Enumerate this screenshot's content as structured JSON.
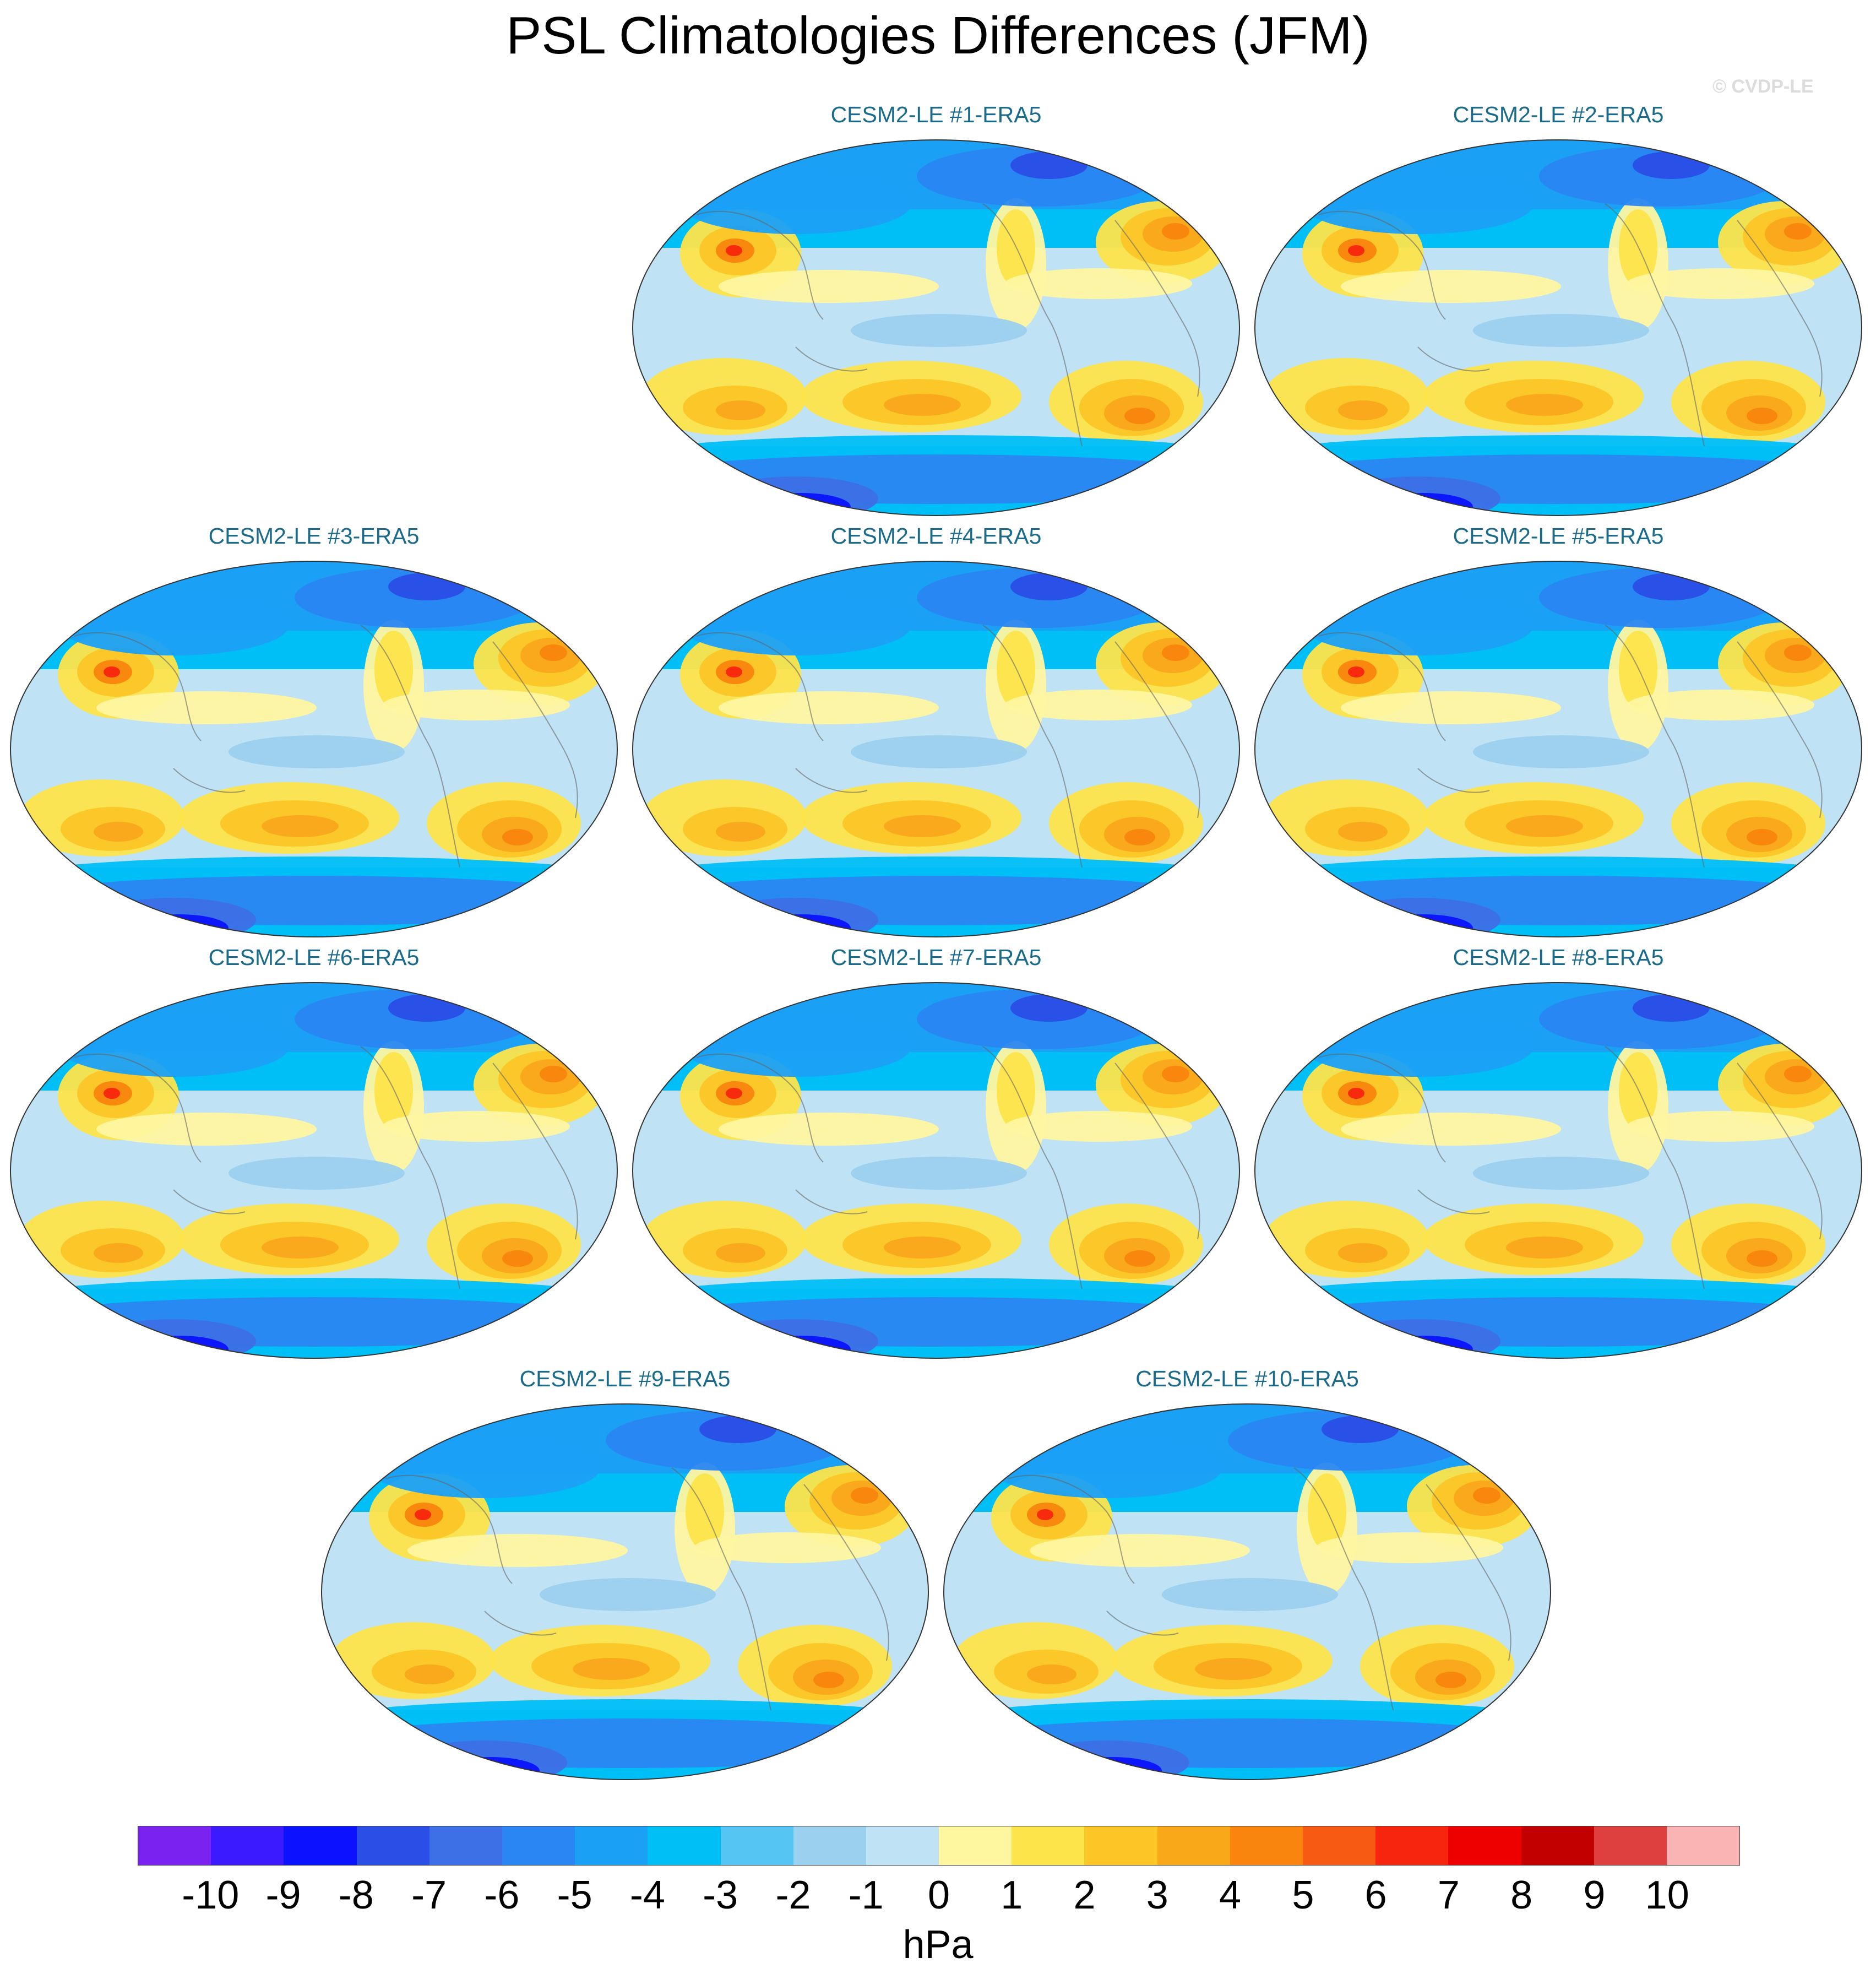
{
  "title": "PSL Climatologies Differences (JFM)",
  "watermark": "© CVDP-LE",
  "units": "hPa",
  "colorbar": {
    "colors": [
      "#7a22f0",
      "#3c1aff",
      "#0a12ff",
      "#2a4ee6",
      "#3d6fe6",
      "#2a86f2",
      "#1aa0f5",
      "#00bff7",
      "#55c6f3",
      "#9bd0ee",
      "#bfe3f5",
      "#fff6a0",
      "#fde44a",
      "#fcc627",
      "#f9a81a",
      "#f9850e",
      "#f75a12",
      "#f8250e",
      "#ee0000",
      "#c30000",
      "#de4040",
      "#fbb4b4"
    ],
    "labels": [
      "-10",
      "-9",
      "-8",
      "-7",
      "-6",
      "-5",
      "-4",
      "-3",
      "-2",
      "-1",
      "0",
      "1",
      "2",
      "3",
      "4",
      "5",
      "6",
      "7",
      "8",
      "9",
      "10"
    ]
  },
  "panels": [
    {
      "title": "CESM2-LE #1-ERA5"
    },
    {
      "title": "CESM2-LE #2-ERA5"
    },
    {
      "title": "CESM2-LE #3-ERA5"
    },
    {
      "title": "CESM2-LE #4-ERA5"
    },
    {
      "title": "CESM2-LE #5-ERA5"
    },
    {
      "title": "CESM2-LE #6-ERA5"
    },
    {
      "title": "CESM2-LE #7-ERA5"
    },
    {
      "title": "CESM2-LE #8-ERA5"
    },
    {
      "title": "CESM2-LE #9-ERA5"
    },
    {
      "title": "CESM2-LE #10-ERA5"
    }
  ]
}
